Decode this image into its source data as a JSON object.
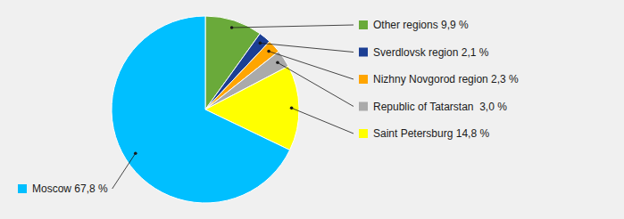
{
  "chart_data": {
    "type": "pie",
    "categories": [
      "Other regions 9,9 %",
      "Sverdlovsk region 2,1 %",
      "Nizhny Novgorod region 2,3 %",
      "Republic of Tatarstan  3,0 %",
      "Saint Petersburg 14,8 %",
      "Moscow 67,8 %"
    ],
    "values": [
      9.9,
      2.1,
      2.3,
      3.0,
      14.8,
      67.8
    ],
    "colors": [
      "#6AAA3A",
      "#1C3F94",
      "#FFA500",
      "#AAAAAA",
      "#FFFF00",
      "#00BFFF"
    ]
  }
}
